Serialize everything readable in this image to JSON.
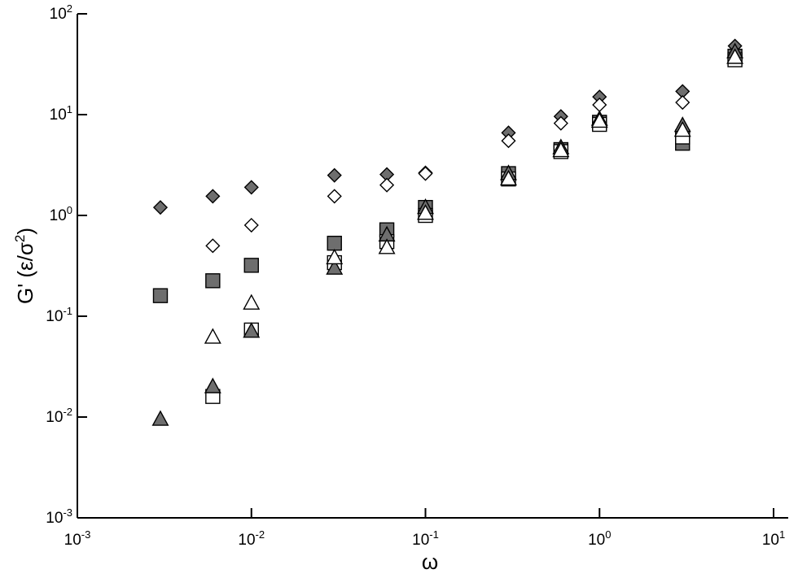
{
  "chart_data": {
    "type": "scatter",
    "title": "",
    "x_scale": "log",
    "y_scale": "log",
    "xlim": [
      0.001,
      10
    ],
    "ylim": [
      0.001,
      100
    ],
    "xlabel": "ω",
    "ylabel_main": "G' (ε/σ",
    "ylabel_sup": "2",
    "ylabel_end": ")",
    "x_ticks": [
      {
        "base": "10",
        "exp": "-3",
        "value": 0.001
      },
      {
        "base": "10",
        "exp": "-2",
        "value": 0.01
      },
      {
        "base": "10",
        "exp": "-1",
        "value": 0.1
      },
      {
        "base": "10",
        "exp": "0",
        "value": 1
      },
      {
        "base": "10",
        "exp": "1",
        "value": 10
      }
    ],
    "y_ticks": [
      {
        "base": "10",
        "exp": "-3",
        "value": 0.001
      },
      {
        "base": "10",
        "exp": "-2",
        "value": 0.01
      },
      {
        "base": "10",
        "exp": "-1",
        "value": 0.1
      },
      {
        "base": "10",
        "exp": "0",
        "value": 1
      },
      {
        "base": "10",
        "exp": "1",
        "value": 10
      },
      {
        "base": "10",
        "exp": "2",
        "value": 100
      }
    ],
    "grid": false,
    "legend": "none",
    "series": [
      {
        "marker": "diamond",
        "filled": true,
        "fill": "#6e6e6e",
        "points": [
          [
            0.003,
            1.2
          ],
          [
            0.006,
            1.55
          ],
          [
            0.01,
            1.9
          ],
          [
            0.03,
            2.5
          ],
          [
            0.06,
            2.55
          ],
          [
            0.1,
            2.65
          ],
          [
            0.3,
            6.6
          ],
          [
            0.6,
            9.6
          ],
          [
            1.0,
            15
          ],
          [
            3.0,
            17
          ],
          [
            6.0,
            48
          ]
        ]
      },
      {
        "marker": "diamond",
        "filled": false,
        "fill": "#ffffff",
        "points": [
          [
            0.006,
            0.5
          ],
          [
            0.01,
            0.8
          ],
          [
            0.03,
            1.55
          ],
          [
            0.06,
            2.0
          ],
          [
            0.1,
            2.6
          ],
          [
            0.3,
            5.5
          ],
          [
            0.6,
            8.2
          ],
          [
            1.0,
            12.5
          ],
          [
            3.0,
            13.2
          ],
          [
            6.0,
            40
          ]
        ]
      },
      {
        "marker": "square",
        "filled": true,
        "fill": "#6e6e6e",
        "points": [
          [
            0.003,
            0.16
          ],
          [
            0.006,
            0.225
          ],
          [
            0.01,
            0.32
          ],
          [
            0.03,
            0.53
          ],
          [
            0.06,
            0.72
          ],
          [
            0.1,
            1.2
          ],
          [
            0.3,
            2.6
          ],
          [
            0.6,
            4.5
          ],
          [
            1.0,
            8.4
          ],
          [
            3.0,
            5.2
          ],
          [
            6.0,
            38
          ]
        ]
      },
      {
        "marker": "square",
        "filled": false,
        "fill": "#ffffff",
        "points": [
          [
            0.006,
            0.016
          ],
          [
            0.01,
            0.073
          ],
          [
            0.03,
            0.34
          ],
          [
            0.06,
            0.55
          ],
          [
            0.1,
            1.0
          ],
          [
            0.3,
            2.3
          ],
          [
            0.6,
            4.3
          ],
          [
            1.0,
            8.0
          ],
          [
            3.0,
            6.0
          ],
          [
            6.0,
            35
          ]
        ]
      },
      {
        "marker": "triangle",
        "filled": true,
        "fill": "#6e6e6e",
        "points": [
          [
            0.003,
            0.0095
          ],
          [
            0.006,
            0.02
          ],
          [
            0.01,
            0.071
          ],
          [
            0.03,
            0.3
          ],
          [
            0.06,
            0.64
          ],
          [
            0.1,
            1.2
          ],
          [
            0.3,
            2.6
          ],
          [
            0.6,
            4.7
          ],
          [
            1.0,
            9.0
          ],
          [
            3.0,
            7.8
          ],
          [
            6.0,
            42
          ]
        ]
      },
      {
        "marker": "triangle",
        "filled": false,
        "fill": "#ffffff",
        "points": [
          [
            0.006,
            0.062
          ],
          [
            0.01,
            0.135
          ],
          [
            0.03,
            0.38
          ],
          [
            0.06,
            0.48
          ],
          [
            0.1,
            1.05
          ],
          [
            0.3,
            2.3
          ],
          [
            0.6,
            4.4
          ],
          [
            1.0,
            8.6
          ],
          [
            3.0,
            7.0
          ],
          [
            6.0,
            37
          ]
        ]
      }
    ]
  }
}
